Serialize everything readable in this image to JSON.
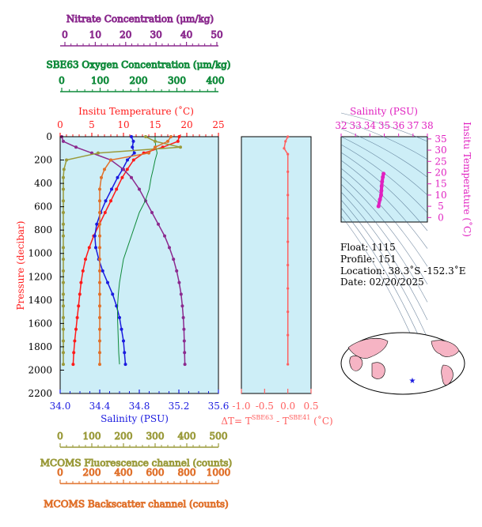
{
  "colors": {
    "plot_bg": "#cdeef7",
    "nitrate": "#8b2a8e",
    "oxygen": "#0f8a3a",
    "temperature": "#ff1a1a",
    "salinity": "#1a1adf",
    "fluorescence": "#9a9a3a",
    "backscatter": "#e0702a",
    "delta_t": "#ff6060",
    "ts_salinity": "#e020c0",
    "ts_contour": "#3a5a7a"
  },
  "axes": {
    "nitrate": {
      "label": "Nitrate Concentration (μm/kg)",
      "ticks": [
        "0",
        "10",
        "20",
        "30",
        "40",
        "50"
      ]
    },
    "oxygen": {
      "label": "SBE63 Oxygen Concentration (μm/kg)",
      "ticks": [
        "0",
        "100",
        "200",
        "300",
        "400"
      ]
    },
    "temperature": {
      "label": "Insitu Temperature (˚C)",
      "ticks": [
        "0",
        "5",
        "10",
        "15",
        "20",
        "25"
      ]
    },
    "pressure": {
      "label": "Pressure (decibar)",
      "ticks": [
        "0",
        "200",
        "400",
        "600",
        "800",
        "1000",
        "1200",
        "1400",
        "1600",
        "1800",
        "2000",
        "2200"
      ]
    },
    "salinity": {
      "label": "Salinity (PSU)",
      "ticks": [
        "34.0",
        "34.4",
        "34.8",
        "35.2",
        "35.6"
      ]
    },
    "delta_t": {
      "label": "ΔT= T",
      "sup1": "SBE63",
      "mid": " - T",
      "sup2": "SBE41",
      "unit": " (˚C)",
      "ticks": [
        "-1.0",
        "-0.5",
        "0.0",
        "0.5"
      ]
    },
    "fluorescence": {
      "label": "MCOMS Fluorescence channel (counts)",
      "ticks": [
        "0",
        "100",
        "200",
        "300",
        "400",
        "500"
      ]
    },
    "backscatter": {
      "label": "MCOMS Backscatter channel (counts)",
      "ticks": [
        "0",
        "200",
        "400",
        "600",
        "800",
        "1000"
      ]
    }
  },
  "ts_plot": {
    "title": "Salinity (PSU)",
    "x_ticks": [
      "32",
      "33",
      "34",
      "35",
      "36",
      "37",
      "38"
    ],
    "y_ticks": [
      "0",
      "5",
      "10",
      "15",
      "20",
      "25",
      "30",
      "35"
    ],
    "y_label": "Insitu Temperature (˚C)"
  },
  "info": {
    "float": "Float:  1115",
    "profile": "Profile:  151",
    "location": "Location:  38.3˚S  -152.3˚E",
    "date": "Date:  02/20/2025"
  },
  "chart_data": [
    {
      "type": "line",
      "title": "",
      "ylabel": "Pressure (decibar)",
      "ylim": [
        2200,
        0
      ],
      "series": [
        {
          "name": "Insitu Temperature (˚C)",
          "xlim": [
            0,
            25
          ],
          "x": [
            18.8,
            18.6,
            16.2,
            13.2,
            11.6,
            10.6,
            9.8,
            8.9,
            8.0,
            7.1,
            6.2,
            5.3,
            4.6,
            4.0,
            3.6,
            3.3,
            3.1,
            2.9,
            2.7,
            2.5,
            2.3,
            2.15,
            2.05
          ],
          "y": [
            0,
            40,
            90,
            140,
            200,
            280,
            350,
            450,
            550,
            650,
            750,
            850,
            950,
            1050,
            1150,
            1250,
            1350,
            1450,
            1550,
            1650,
            1750,
            1850,
            1950
          ]
        },
        {
          "name": "Salinity (PSU)",
          "xlim": [
            34.0,
            35.6
          ],
          "x": [
            34.72,
            34.74,
            34.73,
            34.75,
            34.68,
            34.63,
            34.58,
            34.52,
            34.46,
            34.41,
            34.37,
            34.35,
            34.36,
            34.39,
            34.43,
            34.48,
            34.53,
            34.57,
            34.6,
            34.62,
            34.64,
            34.65,
            34.66
          ],
          "y": [
            0,
            40,
            90,
            140,
            200,
            280,
            350,
            450,
            550,
            650,
            750,
            850,
            950,
            1050,
            1150,
            1250,
            1350,
            1450,
            1550,
            1650,
            1750,
            1850,
            1950
          ]
        },
        {
          "name": "Nitrate Concentration (μm/kg)",
          "xlim": [
            0,
            50
          ],
          "x": [
            0.5,
            1.0,
            5.0,
            10.0,
            16.0,
            20.0,
            22.5,
            25.0,
            27.0,
            29.0,
            31.0,
            33.0,
            34.5,
            35.8,
            36.8,
            37.6,
            38.2,
            38.6,
            38.9,
            39.1,
            39.2,
            39.3,
            39.4
          ],
          "y": [
            0,
            40,
            90,
            140,
            200,
            280,
            350,
            450,
            550,
            650,
            750,
            850,
            950,
            1050,
            1150,
            1250,
            1350,
            1450,
            1550,
            1650,
            1750,
            1850,
            1950
          ]
        },
        {
          "name": "SBE63 Oxygen Concentration (μm/kg)",
          "xlim": [
            0,
            400
          ],
          "x": [
            240,
            240,
            242,
            245,
            240,
            235,
            230,
            225,
            215,
            200,
            190,
            180,
            170,
            160,
            155,
            150,
            147,
            145,
            145,
            146,
            147,
            148,
            150
          ],
          "y": [
            0,
            40,
            90,
            140,
            200,
            280,
            350,
            450,
            550,
            650,
            750,
            850,
            950,
            1050,
            1150,
            1250,
            1350,
            1450,
            1550,
            1650,
            1750,
            1850,
            1950
          ]
        },
        {
          "name": "MCOMS Fluorescence channel (counts)",
          "xlim": [
            0,
            500
          ],
          "x": [
            270,
            300,
            380,
            120,
            20,
            12,
            10,
            10,
            10,
            10,
            10,
            10,
            10,
            10,
            10,
            10,
            10,
            10,
            10,
            10,
            10,
            10,
            10
          ],
          "y": [
            0,
            40,
            90,
            140,
            200,
            280,
            350,
            450,
            550,
            650,
            750,
            850,
            950,
            1050,
            1150,
            1250,
            1350,
            1450,
            1550,
            1650,
            1750,
            1850,
            1950
          ]
        },
        {
          "name": "MCOMS Backscatter channel (counts)",
          "xlim": [
            0,
            1000
          ],
          "x": [
            700,
            680,
            600,
            560,
            320,
            280,
            260,
            250,
            250,
            250,
            250,
            250,
            250,
            250,
            250,
            250,
            250,
            250,
            250,
            250,
            250,
            250,
            250
          ],
          "y": [
            0,
            40,
            90,
            140,
            200,
            280,
            350,
            450,
            550,
            650,
            750,
            850,
            950,
            1050,
            1150,
            1250,
            1350,
            1450,
            1550,
            1650,
            1750,
            1850,
            1950
          ]
        }
      ]
    },
    {
      "type": "line",
      "title": "",
      "xlabel": "ΔT (˚C)",
      "xlim": [
        -1.0,
        0.5
      ],
      "ylim": [
        2200,
        0
      ],
      "series": [
        {
          "name": "ΔT",
          "x": [
            0.0,
            -0.05,
            -0.08,
            0.0,
            0.0,
            0.0,
            0.0,
            0.0,
            0.0,
            0.0,
            0.0,
            0.0,
            0.0
          ],
          "y": [
            0,
            40,
            100,
            150,
            300,
            500,
            700,
            900,
            1100,
            1300,
            1500,
            1700,
            1950
          ]
        }
      ]
    },
    {
      "type": "scatter",
      "title": "Salinity (PSU)",
      "xlabel": "Salinity (PSU)",
      "ylabel": "Insitu Temperature (˚C)",
      "xlim": [
        32,
        38
      ],
      "ylim": [
        -2,
        36
      ],
      "series": [
        {
          "name": "T-S profile",
          "x": [
            34.95,
            34.9,
            34.85,
            34.82,
            34.8,
            34.78,
            34.7,
            34.6
          ],
          "y": [
            19.5,
            18.0,
            16.0,
            14.0,
            12.0,
            10.0,
            8.0,
            5.0
          ]
        }
      ]
    }
  ]
}
